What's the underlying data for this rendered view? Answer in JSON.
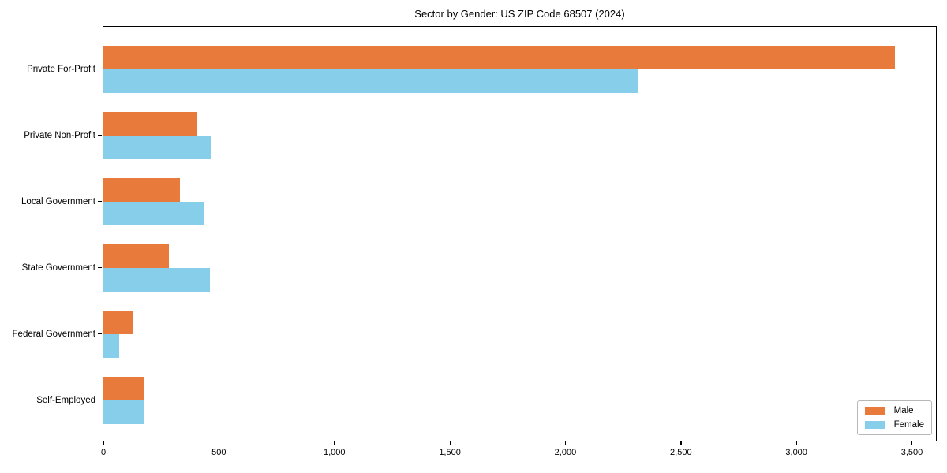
{
  "chart_data": {
    "type": "bar",
    "orientation": "horizontal",
    "title": "Sector by Gender: US ZIP Code 68507 (2024)",
    "categories": [
      "Private For-Profit",
      "Private Non-Profit",
      "Local Government",
      "State Government",
      "Federal Government",
      "Self-Employed"
    ],
    "series": [
      {
        "name": "Male",
        "color": "#e87a3c",
        "values": [
          3425,
          405,
          330,
          285,
          130,
          177
        ]
      },
      {
        "name": "Female",
        "color": "#87ceeb",
        "values": [
          2315,
          465,
          435,
          460,
          68,
          175
        ]
      }
    ],
    "xlabel": "",
    "ylabel": "",
    "xlim": [
      0,
      3600
    ],
    "x_ticks": [
      0,
      500,
      1000,
      1500,
      2000,
      2500,
      3000,
      3500
    ],
    "x_tick_labels": [
      "0",
      "500",
      "1,000",
      "1,500",
      "2,000",
      "2,500",
      "3,000",
      "3,500"
    ],
    "grid": false,
    "legend": {
      "position": "lower right"
    },
    "colors": {
      "axis": "#000000",
      "text": "#000000",
      "legend_border": "#b7b7b7"
    }
  }
}
